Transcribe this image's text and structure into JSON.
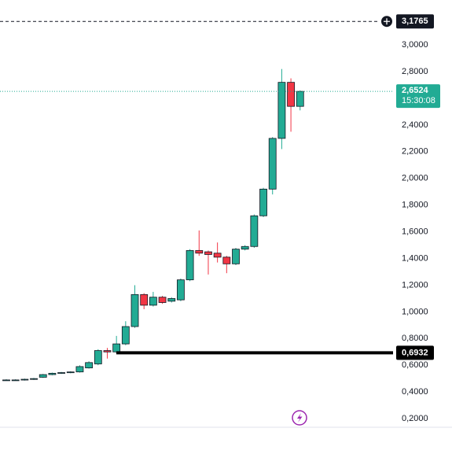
{
  "chart_data": {
    "type": "candlestick",
    "open": [
      0.49,
      0.49,
      0.49,
      0.495,
      0.51,
      0.53,
      0.54,
      0.545,
      0.55,
      0.58,
      0.61,
      0.71,
      0.7,
      0.76,
      0.89,
      1.13,
      1.05,
      1.11,
      1.08,
      1.09,
      1.24,
      1.46,
      1.45,
      1.44,
      1.41,
      1.36,
      1.47,
      1.49,
      1.72,
      1.92,
      2.3,
      2.72,
      2.54
    ],
    "high": [
      0.495,
      0.495,
      0.5,
      0.505,
      0.535,
      0.545,
      0.55,
      0.555,
      0.6,
      0.63,
      0.72,
      0.73,
      0.82,
      0.93,
      1.2,
      1.14,
      1.15,
      1.12,
      1.11,
      1.25,
      1.47,
      1.61,
      1.46,
      1.52,
      1.42,
      1.48,
      1.5,
      1.73,
      1.93,
      2.31,
      2.82,
      2.75,
      2.66
    ],
    "low": [
      0.485,
      0.485,
      0.485,
      0.49,
      0.505,
      0.525,
      0.535,
      0.54,
      0.545,
      0.575,
      0.6,
      0.65,
      0.69,
      0.75,
      0.88,
      1.02,
      1.04,
      1.06,
      1.07,
      1.08,
      1.23,
      1.42,
      1.28,
      1.37,
      1.29,
      1.35,
      1.46,
      1.48,
      1.71,
      1.88,
      2.22,
      2.35,
      2.51
    ],
    "close": [
      0.49,
      0.49,
      0.495,
      0.5,
      0.53,
      0.54,
      0.545,
      0.55,
      0.59,
      0.62,
      0.71,
      0.7,
      0.76,
      0.89,
      1.13,
      1.05,
      1.11,
      1.07,
      1.1,
      1.24,
      1.46,
      1.44,
      1.43,
      1.41,
      1.36,
      1.47,
      1.49,
      1.72,
      1.92,
      2.3,
      2.72,
      2.54,
      2.6524
    ],
    "up_color": "#22ab94",
    "down_color": "#f23645",
    "ylim": [
      -0.065,
      3.337
    ],
    "yticks": [
      {
        "value": 0.2,
        "label": "0,2000"
      },
      {
        "value": 0.4,
        "label": "0,4000"
      },
      {
        "value": 0.6,
        "label": "0,6000"
      },
      {
        "value": 0.8,
        "label": "0,8000"
      },
      {
        "value": 1.0,
        "label": "1,0000"
      },
      {
        "value": 1.2,
        "label": "1,2000"
      },
      {
        "value": 1.4,
        "label": "1,4000"
      },
      {
        "value": 1.6,
        "label": "1,6000"
      },
      {
        "value": 1.8,
        "label": "1,8000"
      },
      {
        "value": 2.0,
        "label": "2,0000"
      },
      {
        "value": 2.2,
        "label": "2,2000"
      },
      {
        "value": 2.4,
        "label": "2,4000"
      },
      {
        "value": 2.6,
        "label": "2,6000"
      },
      {
        "value": 2.8,
        "label": "2,8000"
      },
      {
        "value": 3.0,
        "label": "3,0000"
      }
    ],
    "alert_line": {
      "value": 3.1765,
      "label": "3,1765"
    },
    "last_price": {
      "value": 2.6524,
      "label": "2,6524",
      "countdown": "15:30:08"
    },
    "horizontal_line": {
      "value": 0.6932,
      "label": "0,6932"
    }
  }
}
